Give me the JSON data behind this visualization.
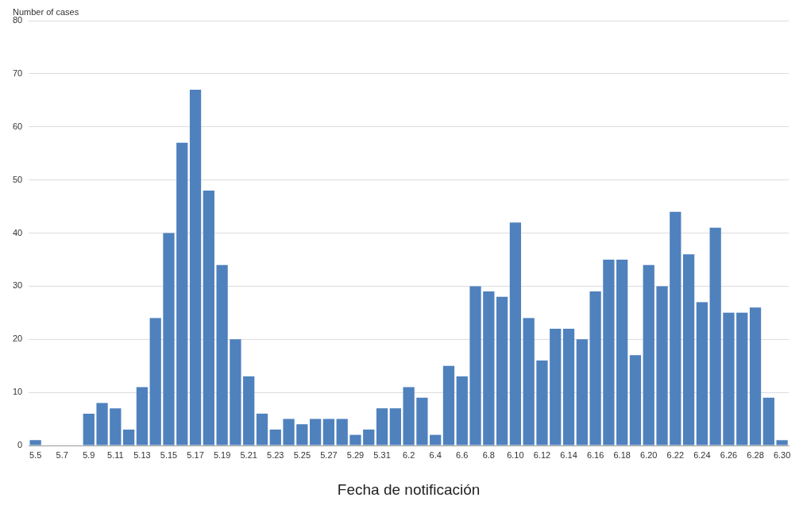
{
  "chart_data": {
    "type": "bar",
    "ylabel": "Number of cases",
    "xlabel": "Fecha de notificación",
    "categories": [
      "5.5",
      null,
      "5.7",
      null,
      "5.9",
      null,
      "5.11",
      null,
      "5.13",
      null,
      "5.15",
      null,
      "5.17",
      null,
      "5.19",
      null,
      "5.21",
      null,
      "5.23",
      null,
      "5.25",
      null,
      "5.27",
      null,
      "5.29",
      null,
      "5.31",
      null,
      "6.2",
      null,
      "6.4",
      null,
      "6.6",
      null,
      "6.8",
      null,
      "6.10",
      null,
      "6.12",
      null,
      "6.14",
      null,
      "6.16",
      null,
      "6.18",
      null,
      "6.20",
      null,
      "6.22",
      null,
      "6.24",
      null,
      "6.26",
      null,
      "6.28",
      null,
      "6.30"
    ],
    "values": [
      1,
      0,
      0,
      0,
      6,
      8,
      7,
      3,
      11,
      24,
      40,
      57,
      67,
      48,
      34,
      20,
      13,
      6,
      3,
      5,
      4,
      5,
      5,
      5,
      2,
      3,
      7,
      7,
      11,
      9,
      2,
      15,
      13,
      30,
      29,
      28,
      42,
      24,
      16,
      22,
      22,
      20,
      29,
      35,
      35,
      17,
      34,
      30,
      44,
      36,
      27,
      41,
      25,
      25,
      26,
      9,
      1
    ],
    "color": "#4f81bd",
    "ylim": [
      0,
      80
    ],
    "yticks": [
      0,
      10,
      20,
      30,
      40,
      50,
      60,
      70,
      80
    ],
    "grid": "y",
    "legend": false
  }
}
